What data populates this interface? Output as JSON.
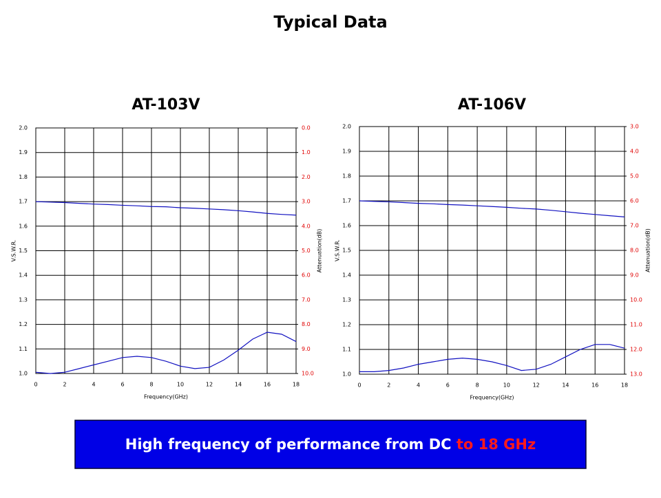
{
  "title": "Typical Data",
  "banner": {
    "text": "High frequency of performance from DC",
    "highlight": "to 18 GHz"
  },
  "chart_data": [
    {
      "type": "line",
      "title": "AT-103V",
      "x_label": "Frequency(GHz)",
      "y_label": "V.S.W.R.",
      "y2_label": "Attenuation(dB)",
      "xlim": [
        0,
        18
      ],
      "xticks": [
        0,
        2,
        4,
        6,
        8,
        10,
        12,
        14,
        16,
        18
      ],
      "ylim": [
        1.0,
        2.0
      ],
      "yticks": [
        {
          "value": 1.0,
          "label": "1.0"
        },
        1.1,
        1.2,
        1.3,
        1.4,
        1.5,
        1.6,
        1.7,
        1.8,
        1.9,
        {
          "value": 2.0,
          "label": "2.0"
        }
      ],
      "y2lim": [
        10.0,
        0.0
      ],
      "y2ticks": [
        {
          "value": 10,
          "label": "10.0"
        },
        {
          "value": 9,
          "label": "9.0"
        },
        {
          "value": 8,
          "label": "8.0"
        },
        {
          "value": 7,
          "label": "7.0"
        },
        {
          "value": 6,
          "label": "6.0"
        },
        {
          "value": 5,
          "label": "5.0"
        },
        {
          "value": 4,
          "label": "4.0"
        },
        {
          "value": 3,
          "label": "3.0"
        },
        {
          "value": 2,
          "label": "2.0"
        },
        {
          "value": 1,
          "label": "1.0"
        },
        {
          "value": 0,
          "label": "0.0"
        }
      ],
      "grid": true,
      "x": [
        0,
        1,
        2,
        3,
        4,
        5,
        6,
        7,
        8,
        9,
        10,
        11,
        12,
        13,
        14,
        15,
        16,
        17,
        18
      ],
      "series": [
        {
          "color": "#1010c0",
          "values": [
            1.005,
            1.0,
            1.005,
            1.02,
            1.035,
            1.05,
            1.065,
            1.07,
            1.065,
            1.05,
            1.03,
            1.02,
            1.025,
            1.055,
            1.095,
            1.14,
            1.168,
            1.16,
            1.13
          ]
        },
        {
          "color": "#1010c0",
          "axis": "y2",
          "values": [
            3.0,
            3.02,
            3.04,
            3.07,
            3.1,
            3.12,
            3.15,
            3.17,
            3.2,
            3.21,
            3.25,
            3.27,
            3.3,
            3.33,
            3.37,
            3.42,
            3.48,
            3.52,
            3.55
          ]
        }
      ]
    },
    {
      "type": "line",
      "title": "AT-106V",
      "x_label": "Frequency(GHz)",
      "y_label": "V.S.W.R.",
      "y2_label": "Attenuation(dB)",
      "xlim": [
        0,
        18
      ],
      "xticks": [
        0,
        2,
        4,
        6,
        8,
        10,
        12,
        14,
        16,
        18
      ],
      "ylim": [
        1.0,
        2.0
      ],
      "yticks": [
        {
          "value": 1.0,
          "label": "1.0"
        },
        1.1,
        1.2,
        1.3,
        1.4,
        1.5,
        1.6,
        1.7,
        1.8,
        1.9,
        {
          "value": 2.0,
          "label": "2.0"
        }
      ],
      "y2lim": [
        13.0,
        3.0
      ],
      "y2ticks": [
        {
          "value": 13,
          "label": "13.0"
        },
        {
          "value": 12,
          "label": "12.0"
        },
        {
          "value": 11,
          "label": "11.0"
        },
        {
          "value": 10,
          "label": "10.0"
        },
        {
          "value": 9,
          "label": "9.0"
        },
        {
          "value": 8,
          "label": "8.0"
        },
        {
          "value": 7,
          "label": "7.0"
        },
        {
          "value": 6,
          "label": "6.0"
        },
        {
          "value": 5,
          "label": "5.0"
        },
        {
          "value": 4,
          "label": "4.0"
        },
        {
          "value": 3,
          "label": "3.0"
        }
      ],
      "grid": true,
      "x": [
        0,
        1,
        2,
        3,
        4,
        5,
        6,
        7,
        8,
        9,
        10,
        11,
        12,
        13,
        14,
        15,
        16,
        17,
        18
      ],
      "series": [
        {
          "color": "#1010c0",
          "values": [
            1.01,
            1.01,
            1.015,
            1.025,
            1.04,
            1.05,
            1.06,
            1.065,
            1.06,
            1.05,
            1.035,
            1.015,
            1.02,
            1.04,
            1.07,
            1.1,
            1.12,
            1.12,
            1.105
          ]
        },
        {
          "color": "#1010c0",
          "axis": "y2",
          "values": [
            6.0,
            6.02,
            6.04,
            6.07,
            6.1,
            6.12,
            6.15,
            6.17,
            6.2,
            6.23,
            6.26,
            6.3,
            6.33,
            6.38,
            6.44,
            6.5,
            6.55,
            6.6,
            6.65
          ]
        }
      ]
    }
  ]
}
